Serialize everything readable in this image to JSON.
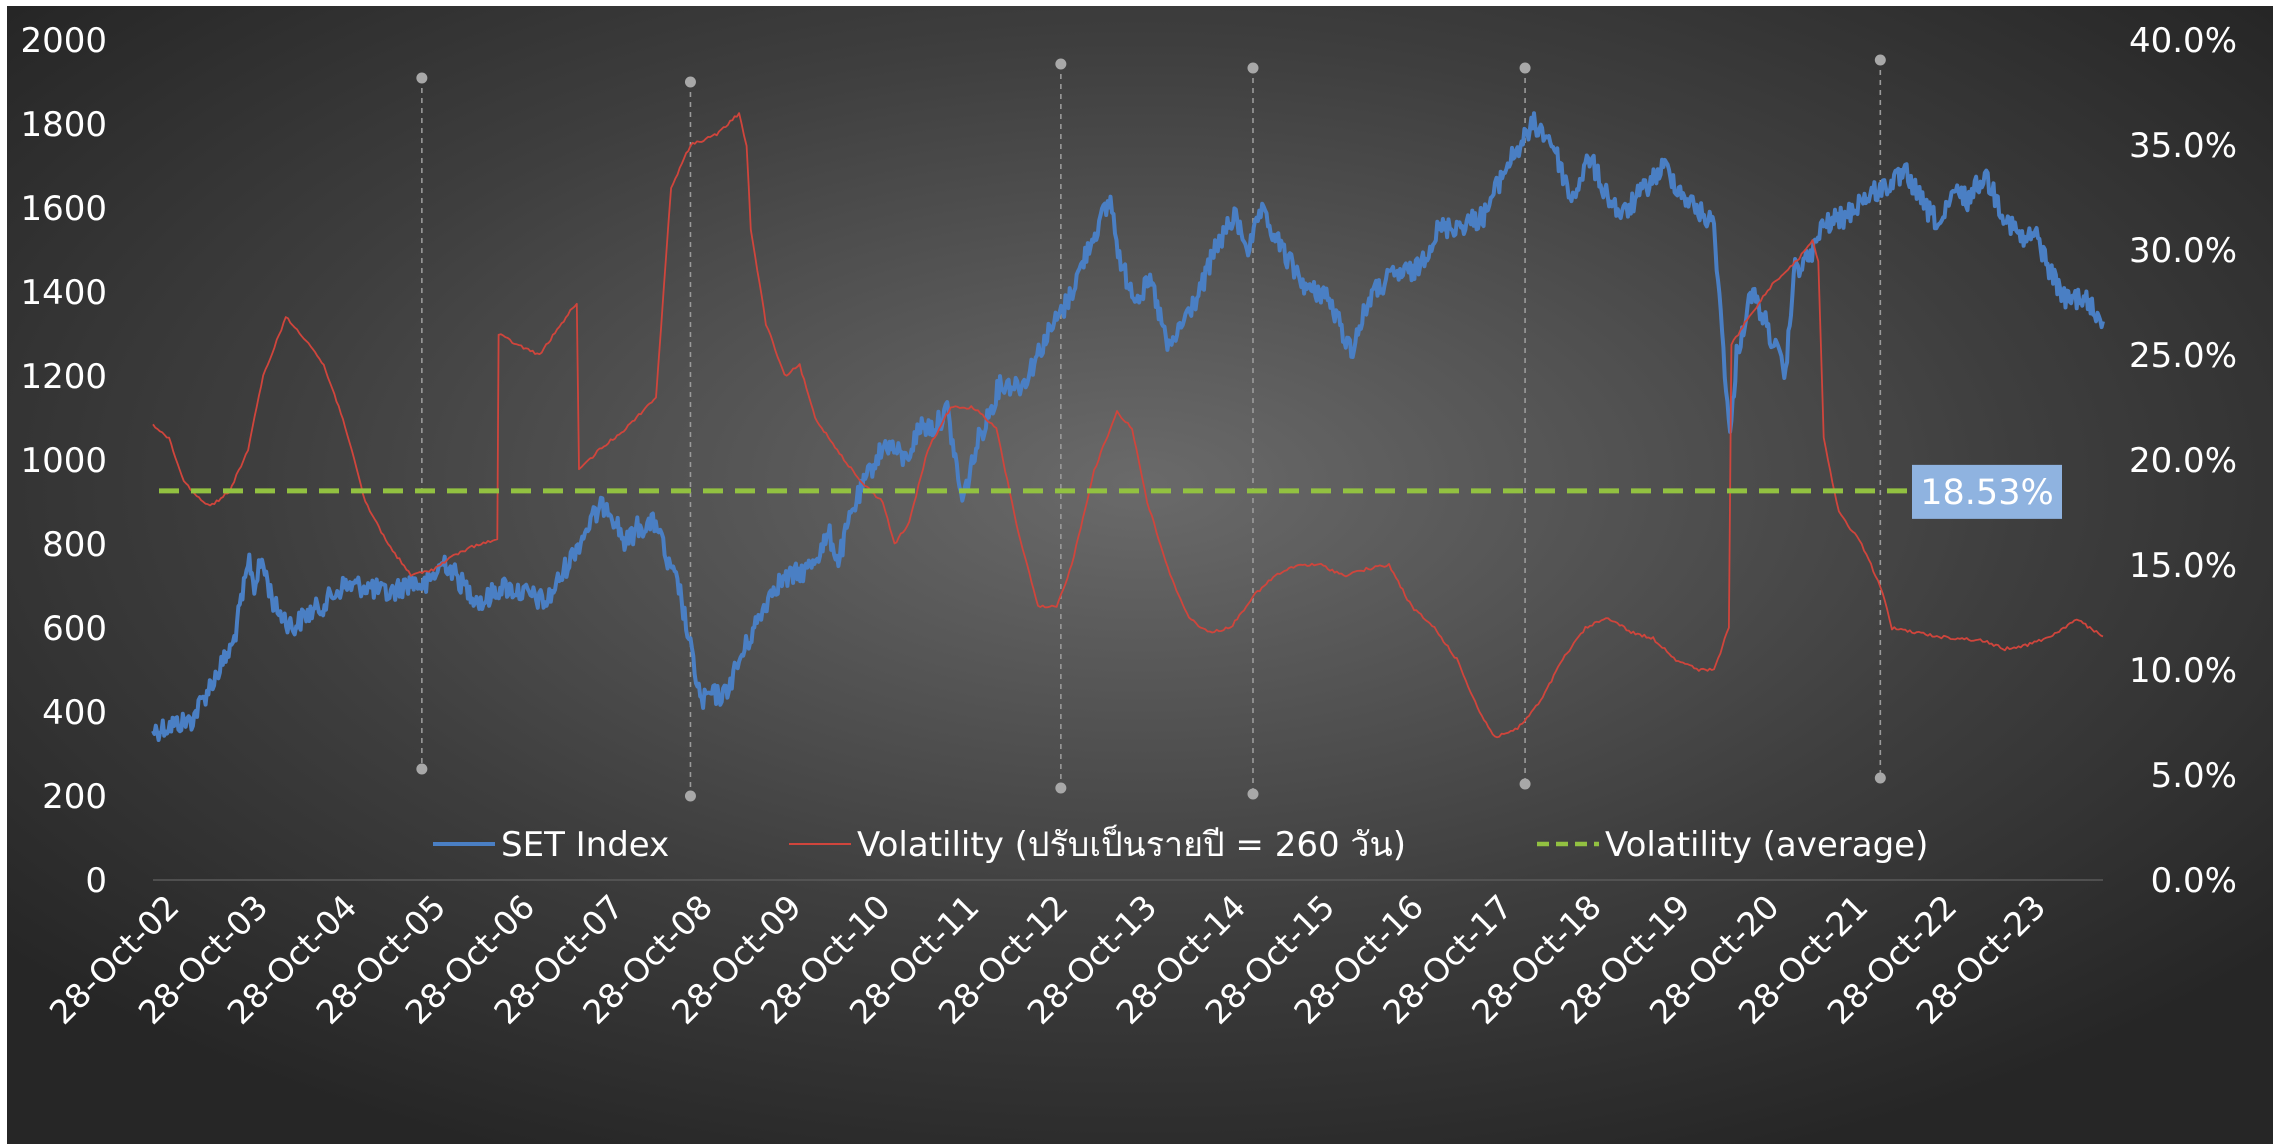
{
  "chart_data": {
    "type": "line",
    "title": "",
    "y_left": {
      "ylim": [
        0,
        2000
      ],
      "ticks": [
        "0",
        "200",
        "400",
        "600",
        "800",
        "1000",
        "1200",
        "1400",
        "1600",
        "1800",
        "2000"
      ]
    },
    "y_right": {
      "ylim": [
        0,
        40
      ],
      "ticks": [
        "0.0%",
        "5.0%",
        "10.0%",
        "15.0%",
        "20.0%",
        "25.0%",
        "30.0%",
        "35.0%",
        "40.0%"
      ]
    },
    "x_axis": {
      "range": [
        "2002-10-28",
        "2024-04-30"
      ],
      "tick_labels": [
        "28-Oct-02",
        "28-Oct-03",
        "28-Oct-04",
        "28-Oct-05",
        "28-Oct-06",
        "28-Oct-07",
        "28-Oct-08",
        "28-Oct-09",
        "28-Oct-10",
        "28-Oct-11",
        "28-Oct-12",
        "28-Oct-13",
        "28-Oct-14",
        "28-Oct-15",
        "28-Oct-16",
        "28-Oct-17",
        "28-Oct-18",
        "28-Oct-19",
        "28-Oct-20",
        "28-Oct-21",
        "28-Oct-22",
        "28-Oct-23"
      ]
    },
    "legend": {
      "position": "bottom"
    },
    "grid": false,
    "series": [
      {
        "name": "SET Index",
        "axis": "left",
        "color": "#4a7fc4",
        "points": [
          [
            "2002-10-28",
            355
          ],
          [
            "2003-01-15",
            370
          ],
          [
            "2003-04-01",
            380
          ],
          [
            "2003-07-01",
            480
          ],
          [
            "2003-09-15",
            560
          ],
          [
            "2003-11-20",
            760
          ],
          [
            "2003-12-10",
            700
          ],
          [
            "2004-01-10",
            760
          ],
          [
            "2004-03-01",
            650
          ],
          [
            "2004-05-15",
            600
          ],
          [
            "2004-07-01",
            630
          ],
          [
            "2004-09-01",
            650
          ],
          [
            "2004-12-01",
            700
          ],
          [
            "2005-03-01",
            700
          ],
          [
            "2005-06-01",
            680
          ],
          [
            "2005-09-01",
            710
          ],
          [
            "2005-11-01",
            700
          ],
          [
            "2006-01-15",
            760
          ],
          [
            "2006-04-01",
            700
          ],
          [
            "2006-06-15",
            660
          ],
          [
            "2006-09-01",
            700
          ],
          [
            "2006-12-15",
            680
          ],
          [
            "2007-03-01",
            660
          ],
          [
            "2007-06-01",
            760
          ],
          [
            "2007-09-01",
            860
          ],
          [
            "2007-10-30",
            900
          ],
          [
            "2008-01-15",
            800
          ],
          [
            "2008-03-01",
            840
          ],
          [
            "2008-05-20",
            850
          ],
          [
            "2008-07-01",
            750
          ],
          [
            "2008-08-15",
            700
          ],
          [
            "2008-10-01",
            550
          ],
          [
            "2008-11-15",
            420
          ],
          [
            "2008-12-15",
            440
          ],
          [
            "2009-02-15",
            440
          ],
          [
            "2009-04-15",
            520
          ],
          [
            "2009-06-15",
            600
          ],
          [
            "2009-09-01",
            700
          ],
          [
            "2009-11-01",
            720
          ],
          [
            "2010-01-15",
            740
          ],
          [
            "2010-04-15",
            820
          ],
          [
            "2010-05-20",
            760
          ],
          [
            "2010-07-15",
            880
          ],
          [
            "2010-10-15",
            1000
          ],
          [
            "2010-12-01",
            1040
          ],
          [
            "2011-02-15",
            1000
          ],
          [
            "2011-04-15",
            1080
          ],
          [
            "2011-06-15",
            1080
          ],
          [
            "2011-08-01",
            1120
          ],
          [
            "2011-10-01",
            900
          ],
          [
            "2011-12-01",
            1040
          ],
          [
            "2012-03-01",
            1180
          ],
          [
            "2012-06-01",
            1180
          ],
          [
            "2012-09-01",
            1290
          ],
          [
            "2012-12-01",
            1380
          ],
          [
            "2013-03-01",
            1520
          ],
          [
            "2013-05-20",
            1620
          ],
          [
            "2013-07-01",
            1460
          ],
          [
            "2013-09-01",
            1390
          ],
          [
            "2013-11-01",
            1420
          ],
          [
            "2014-01-10",
            1260
          ],
          [
            "2014-03-01",
            1320
          ],
          [
            "2014-05-15",
            1400
          ],
          [
            "2014-07-15",
            1500
          ],
          [
            "2014-10-01",
            1580
          ],
          [
            "2014-12-01",
            1500
          ],
          [
            "2015-01-15",
            1590
          ],
          [
            "2015-03-15",
            1530
          ],
          [
            "2015-05-01",
            1480
          ],
          [
            "2015-08-01",
            1400
          ],
          [
            "2015-10-01",
            1400
          ],
          [
            "2016-01-15",
            1260
          ],
          [
            "2016-04-01",
            1390
          ],
          [
            "2016-07-01",
            1440
          ],
          [
            "2016-10-01",
            1450
          ],
          [
            "2017-01-01",
            1550
          ],
          [
            "2017-04-01",
            1560
          ],
          [
            "2017-07-01",
            1580
          ],
          [
            "2017-10-01",
            1700
          ],
          [
            "2018-01-20",
            1800
          ],
          [
            "2018-04-01",
            1760
          ],
          [
            "2018-06-20",
            1620
          ],
          [
            "2018-09-01",
            1720
          ],
          [
            "2018-11-01",
            1640
          ],
          [
            "2019-01-10",
            1580
          ],
          [
            "2019-04-01",
            1640
          ],
          [
            "2019-07-01",
            1700
          ],
          [
            "2019-09-01",
            1640
          ],
          [
            "2019-11-01",
            1600
          ],
          [
            "2020-01-15",
            1560
          ],
          [
            "2020-03-20",
            1050
          ],
          [
            "2020-04-15",
            1250
          ],
          [
            "2020-06-15",
            1400
          ],
          [
            "2020-08-15",
            1320
          ],
          [
            "2020-10-30",
            1200
          ],
          [
            "2020-12-01",
            1450
          ],
          [
            "2021-02-01",
            1480
          ],
          [
            "2021-04-01",
            1560
          ],
          [
            "2021-07-01",
            1580
          ],
          [
            "2021-09-01",
            1620
          ],
          [
            "2021-12-01",
            1650
          ],
          [
            "2022-03-01",
            1680
          ],
          [
            "2022-05-15",
            1600
          ],
          [
            "2022-07-15",
            1560
          ],
          [
            "2022-09-15",
            1640
          ],
          [
            "2022-11-01",
            1620
          ],
          [
            "2023-01-10",
            1680
          ],
          [
            "2023-04-01",
            1580
          ],
          [
            "2023-06-15",
            1520
          ],
          [
            "2023-08-01",
            1540
          ],
          [
            "2023-10-01",
            1450
          ],
          [
            "2023-12-01",
            1380
          ],
          [
            "2024-02-01",
            1390
          ],
          [
            "2024-04-30",
            1330
          ]
        ]
      },
      {
        "name": "Volatility (ปรับเป็นรายปี  = 260 วัน)",
        "axis": "right",
        "color": "#d0453c",
        "points": [
          [
            "2002-10-28",
            21.7
          ],
          [
            "2003-01-01",
            21.0
          ],
          [
            "2003-03-01",
            19.0
          ],
          [
            "2003-05-01",
            18.2
          ],
          [
            "2003-06-15",
            17.8
          ],
          [
            "2003-09-01",
            18.5
          ],
          [
            "2003-11-15",
            20.5
          ],
          [
            "2004-01-15",
            24.0
          ],
          [
            "2004-04-15",
            26.8
          ],
          [
            "2004-07-15",
            25.6
          ],
          [
            "2004-09-15",
            24.5
          ],
          [
            "2004-12-01",
            22.0
          ],
          [
            "2005-03-01",
            18.0
          ],
          [
            "2005-06-01",
            16.0
          ],
          [
            "2005-09-01",
            14.5
          ],
          [
            "2005-12-01",
            14.8
          ],
          [
            "2006-03-01",
            15.5
          ],
          [
            "2006-06-01",
            16.0
          ],
          [
            "2006-08-15",
            16.2
          ],
          [
            "2006-08-20",
            26.0
          ],
          [
            "2006-11-01",
            25.5
          ],
          [
            "2007-02-01",
            25.0
          ],
          [
            "2007-05-01",
            26.5
          ],
          [
            "2007-07-01",
            27.5
          ],
          [
            "2007-07-10",
            19.5
          ],
          [
            "2007-10-01",
            20.5
          ],
          [
            "2008-01-15",
            21.5
          ],
          [
            "2008-05-15",
            23.0
          ],
          [
            "2008-06-15",
            28.0
          ],
          [
            "2008-07-15",
            33.0
          ],
          [
            "2008-10-01",
            35.0
          ],
          [
            "2009-01-15",
            35.5
          ],
          [
            "2009-04-15",
            36.5
          ],
          [
            "2009-05-15",
            35.0
          ],
          [
            "2009-06-01",
            31.0
          ],
          [
            "2009-08-01",
            26.5
          ],
          [
            "2009-10-15",
            24.0
          ],
          [
            "2009-12-15",
            24.5
          ],
          [
            "2010-02-15",
            22.0
          ],
          [
            "2010-05-15",
            20.5
          ],
          [
            "2010-08-15",
            19.0
          ],
          [
            "2010-11-15",
            18.0
          ],
          [
            "2011-01-01",
            16.0
          ],
          [
            "2011-03-01",
            17.0
          ],
          [
            "2011-05-15",
            20.5
          ],
          [
            "2011-08-15",
            22.5
          ],
          [
            "2011-11-15",
            22.5
          ],
          [
            "2012-02-15",
            21.5
          ],
          [
            "2012-05-15",
            16.5
          ],
          [
            "2012-08-01",
            13.0
          ],
          [
            "2012-10-15",
            13.0
          ],
          [
            "2012-12-15",
            15.0
          ],
          [
            "2013-03-15",
            19.5
          ],
          [
            "2013-06-15",
            22.3
          ],
          [
            "2013-08-15",
            21.5
          ],
          [
            "2013-10-15",
            18.0
          ],
          [
            "2014-01-15",
            14.5
          ],
          [
            "2014-04-01",
            12.5
          ],
          [
            "2014-06-15",
            11.8
          ],
          [
            "2014-09-15",
            12.0
          ],
          [
            "2014-12-15",
            13.5
          ],
          [
            "2015-03-15",
            14.5
          ],
          [
            "2015-06-15",
            15.0
          ],
          [
            "2015-09-15",
            15.0
          ],
          [
            "2015-12-15",
            14.5
          ],
          [
            "2016-03-15",
            14.8
          ],
          [
            "2016-06-15",
            15.0
          ],
          [
            "2016-09-15",
            13.0
          ],
          [
            "2016-12-15",
            12.0
          ],
          [
            "2017-03-15",
            10.5
          ],
          [
            "2017-06-15",
            8.0
          ],
          [
            "2017-08-15",
            6.8
          ],
          [
            "2017-11-15",
            7.2
          ],
          [
            "2018-02-15",
            8.5
          ],
          [
            "2018-05-15",
            10.5
          ],
          [
            "2018-08-15",
            12.0
          ],
          [
            "2018-11-15",
            12.5
          ],
          [
            "2019-02-15",
            11.8
          ],
          [
            "2019-05-15",
            11.5
          ],
          [
            "2019-08-15",
            10.5
          ],
          [
            "2019-11-15",
            10.0
          ],
          [
            "2020-01-15",
            10.0
          ],
          [
            "2020-03-15",
            12.0
          ],
          [
            "2020-03-25",
            25.5
          ],
          [
            "2020-06-15",
            27.0
          ],
          [
            "2020-09-15",
            28.5
          ],
          [
            "2020-12-15",
            29.5
          ],
          [
            "2021-02-15",
            30.5
          ],
          [
            "2021-03-10",
            29.5
          ],
          [
            "2021-04-01",
            21.0
          ],
          [
            "2021-06-01",
            17.5
          ],
          [
            "2021-09-01",
            16.0
          ],
          [
            "2021-11-15",
            14.0
          ],
          [
            "2022-01-01",
            12.0
          ],
          [
            "2022-04-01",
            11.8
          ],
          [
            "2022-07-01",
            11.6
          ],
          [
            "2022-10-01",
            11.5
          ],
          [
            "2023-01-01",
            11.4
          ],
          [
            "2023-04-01",
            11.0
          ],
          [
            "2023-07-01",
            11.2
          ],
          [
            "2023-10-01",
            11.6
          ],
          [
            "2024-01-15",
            12.4
          ],
          [
            "2024-04-30",
            11.6
          ]
        ]
      },
      {
        "name": "Volatility (average)",
        "axis": "right",
        "color": "#92c141",
        "style": "dashed",
        "value": 18.53
      }
    ],
    "annotations": [
      {
        "text": "18.53%",
        "series": "Volatility (average)"
      }
    ],
    "event_markers": [
      "2005-10-15",
      "2008-10-01",
      "2012-11-01",
      "2014-12-15",
      "2017-12-15",
      "2021-11-15"
    ]
  }
}
